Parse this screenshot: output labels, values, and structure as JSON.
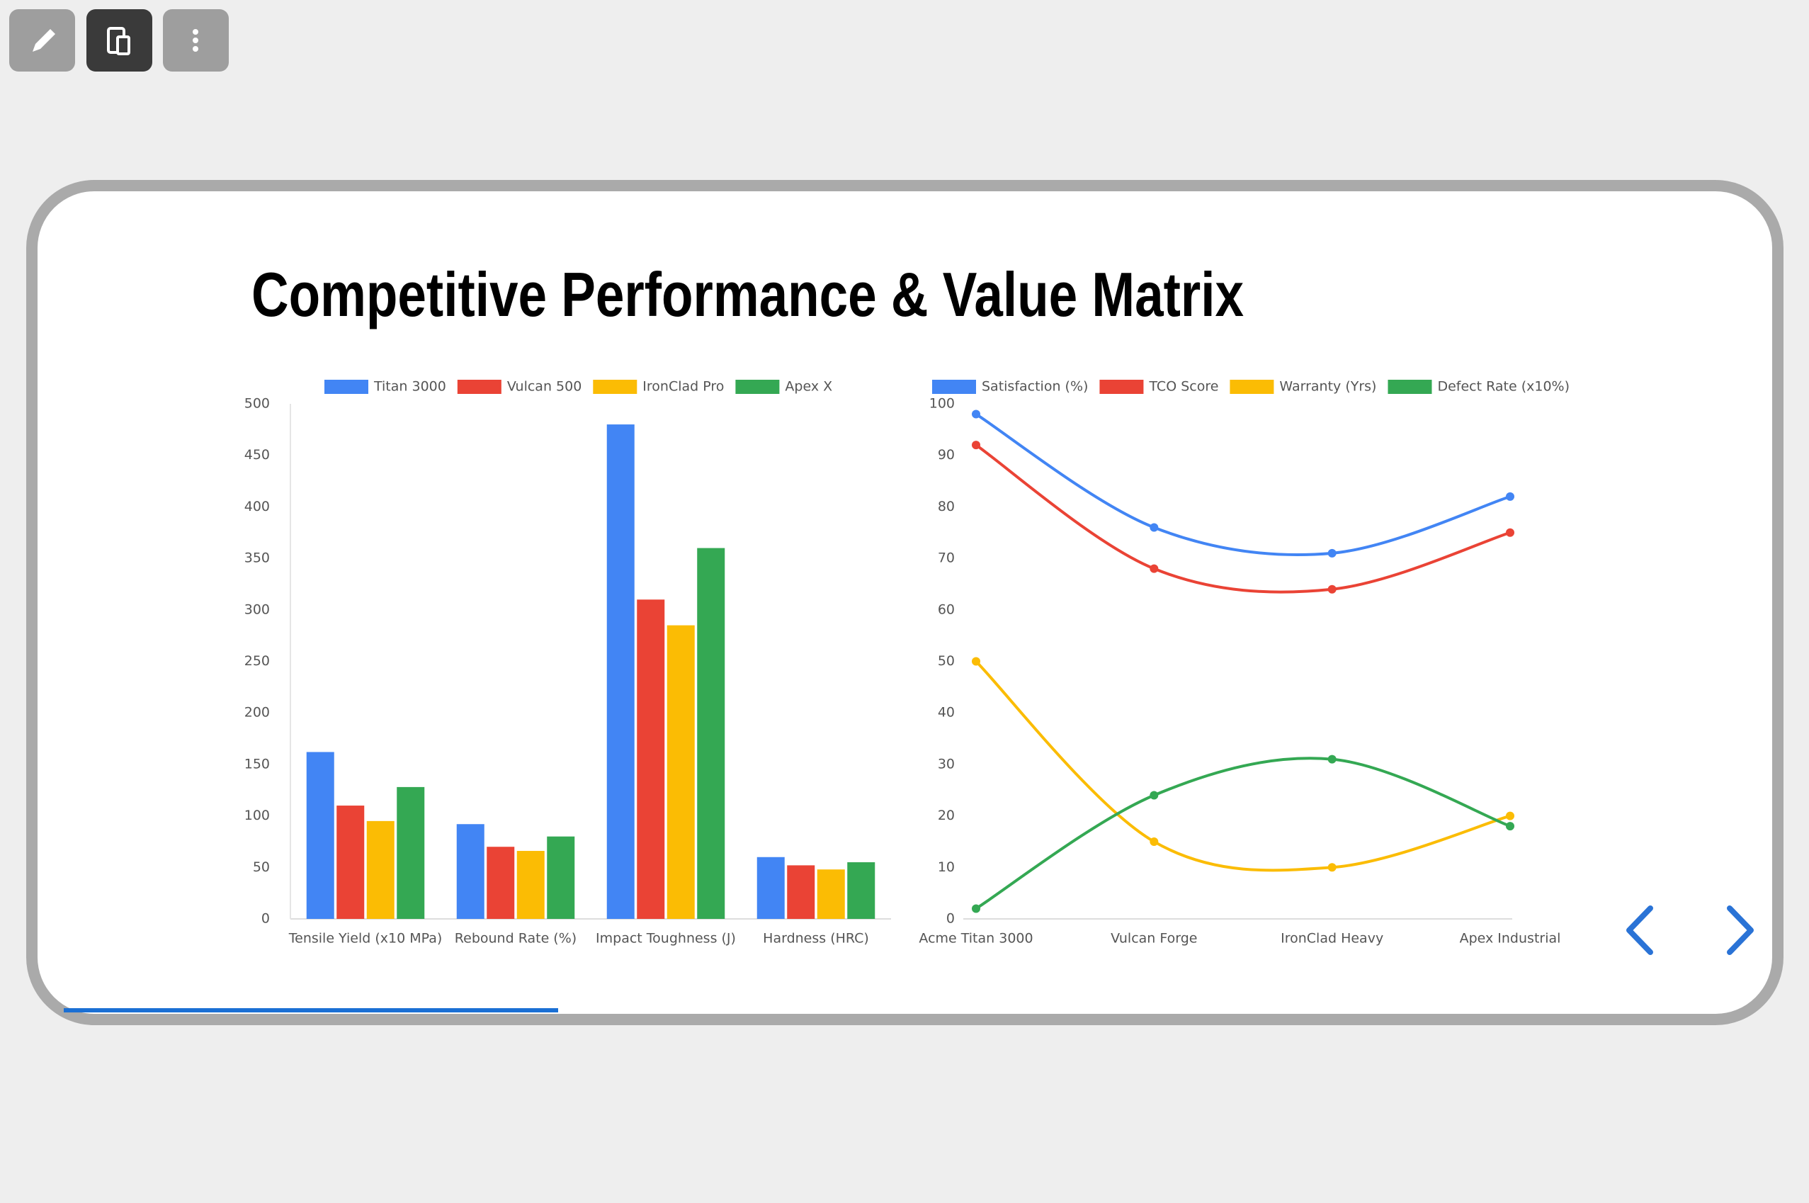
{
  "title": "Competitive Performance & Value Matrix",
  "chart_data": [
    {
      "type": "bar",
      "categories": [
        "Tensile Yield (x10 MPa)",
        "Rebound Rate (%)",
        "Impact Toughness (J)",
        "Hardness (HRC)"
      ],
      "series": [
        {
          "name": "Titan 3000",
          "color": "#4285f4",
          "values": [
            162,
            92,
            480,
            60
          ]
        },
        {
          "name": "Vulcan 500",
          "color": "#ea4335",
          "values": [
            110,
            70,
            310,
            52
          ]
        },
        {
          "name": "IronClad Pro",
          "color": "#fbbc04",
          "values": [
            95,
            66,
            285,
            48
          ]
        },
        {
          "name": "Apex X",
          "color": "#34a853",
          "values": [
            128,
            80,
            360,
            55
          ]
        }
      ],
      "ylim": [
        0,
        500
      ],
      "yticks": [
        0,
        50,
        100,
        150,
        200,
        250,
        300,
        350,
        400,
        450,
        500
      ],
      "grid": false
    },
    {
      "type": "line",
      "categories": [
        "Acme Titan 3000",
        "Vulcan Forge",
        "IronClad Heavy",
        "Apex Industrial"
      ],
      "series": [
        {
          "name": "Satisfaction (%)",
          "color": "#4285f4",
          "values": [
            98,
            76,
            71,
            82
          ]
        },
        {
          "name": "TCO Score",
          "color": "#ea4335",
          "values": [
            92,
            68,
            64,
            75
          ]
        },
        {
          "name": "Warranty (Yrs)",
          "color": "#fbbc04",
          "values": [
            50,
            15,
            10,
            20
          ]
        },
        {
          "name": "Defect Rate (x10%)",
          "color": "#34a853",
          "values": [
            2,
            24,
            31,
            18
          ]
        }
      ],
      "ylim": [
        0,
        100
      ],
      "yticks": [
        0,
        10,
        20,
        30,
        40,
        50,
        60,
        70,
        80,
        90,
        100
      ],
      "grid": false
    }
  ]
}
